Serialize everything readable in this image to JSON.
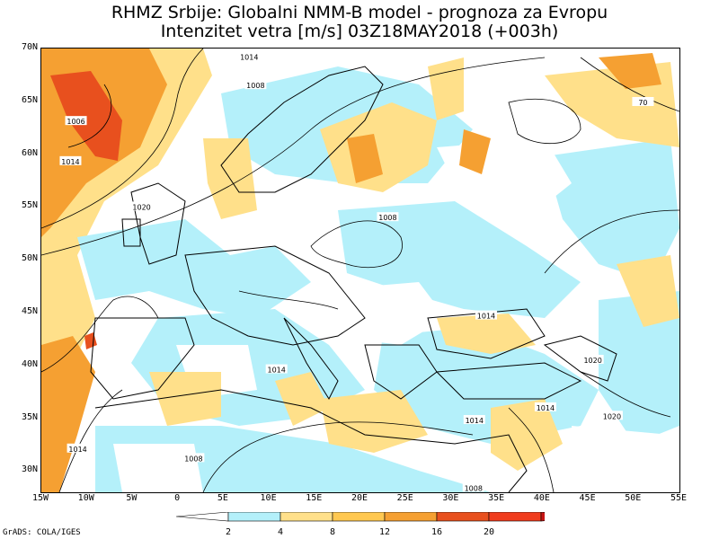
{
  "header": {
    "title_line1": "RHMZ Srbije: Globalni NMM-B model - prognoza za Evropu",
    "title_line2": "Intenzitet vetra [m/s] 03Z18MAY2018 (+003h)"
  },
  "map": {
    "lat_ticks": [
      "70N",
      "65N",
      "60N",
      "55N",
      "50N",
      "45N",
      "40N",
      "35N",
      "30N"
    ],
    "lat_values": [
      70,
      65,
      60,
      55,
      50,
      45,
      40,
      35,
      30
    ],
    "lon_ticks": [
      "15W",
      "10W",
      "5W",
      "0",
      "5E",
      "10E",
      "15E",
      "20E",
      "25E",
      "30E",
      "35E",
      "40E",
      "45E",
      "50E",
      "55E"
    ],
    "lon_values": [
      -15,
      -10,
      -5,
      0,
      5,
      10,
      15,
      20,
      25,
      30,
      35,
      40,
      45,
      50,
      55
    ],
    "lon_range": [
      -15,
      55
    ],
    "lat_range": [
      28,
      70
    ],
    "isobar_labels": [
      {
        "text": "1014",
        "lon": 7.8,
        "lat": 69.2
      },
      {
        "text": "1008",
        "lon": 8.5,
        "lat": 66.5
      },
      {
        "text": "1006",
        "lon": -11.2,
        "lat": 63.1
      },
      {
        "text": "1014",
        "lon": -11.8,
        "lat": 59.3
      },
      {
        "text": "1020",
        "lon": -4.0,
        "lat": 55.0
      },
      {
        "text": "1008",
        "lon": 23.0,
        "lat": 54.0
      },
      {
        "text": "1014",
        "lon": 33.8,
        "lat": 44.7
      },
      {
        "text": "1014",
        "lon": 10.8,
        "lat": 39.6
      },
      {
        "text": "1008",
        "lon": 1.7,
        "lat": 31.2
      },
      {
        "text": "1014",
        "lon": -11.0,
        "lat": 32.1
      },
      {
        "text": "1014",
        "lon": 32.5,
        "lat": 34.8
      },
      {
        "text": "1014",
        "lon": 40.3,
        "lat": 36.0
      },
      {
        "text": "1020",
        "lon": 47.6,
        "lat": 35.2
      },
      {
        "text": "1020",
        "lon": 45.5,
        "lat": 40.5
      },
      {
        "text": "1008",
        "lon": 32.4,
        "lat": 28.4
      },
      {
        "text": "70",
        "lon": 51.0,
        "lat": 64.9
      }
    ],
    "fill_colors": {
      "ocean_bg": "#ffffff",
      "c2_4": "#b4f0fa",
      "c4_8": "#ffffff",
      "c8_12": "#ffe08a",
      "c12_16": "#f5a032",
      "c16_20": "#e8501e",
      "c20p": "#c81e1e"
    }
  },
  "legend": {
    "labels": [
      "2",
      "4",
      "8",
      "12",
      "16",
      "20"
    ],
    "colors": [
      "#ffffff",
      "#b4f0fa",
      "#ffe08a",
      "#ffc850",
      "#f5a032",
      "#e8501e",
      "#f03c1e",
      "#c81414"
    ]
  },
  "credit": "GrADS: COLA/IGES"
}
